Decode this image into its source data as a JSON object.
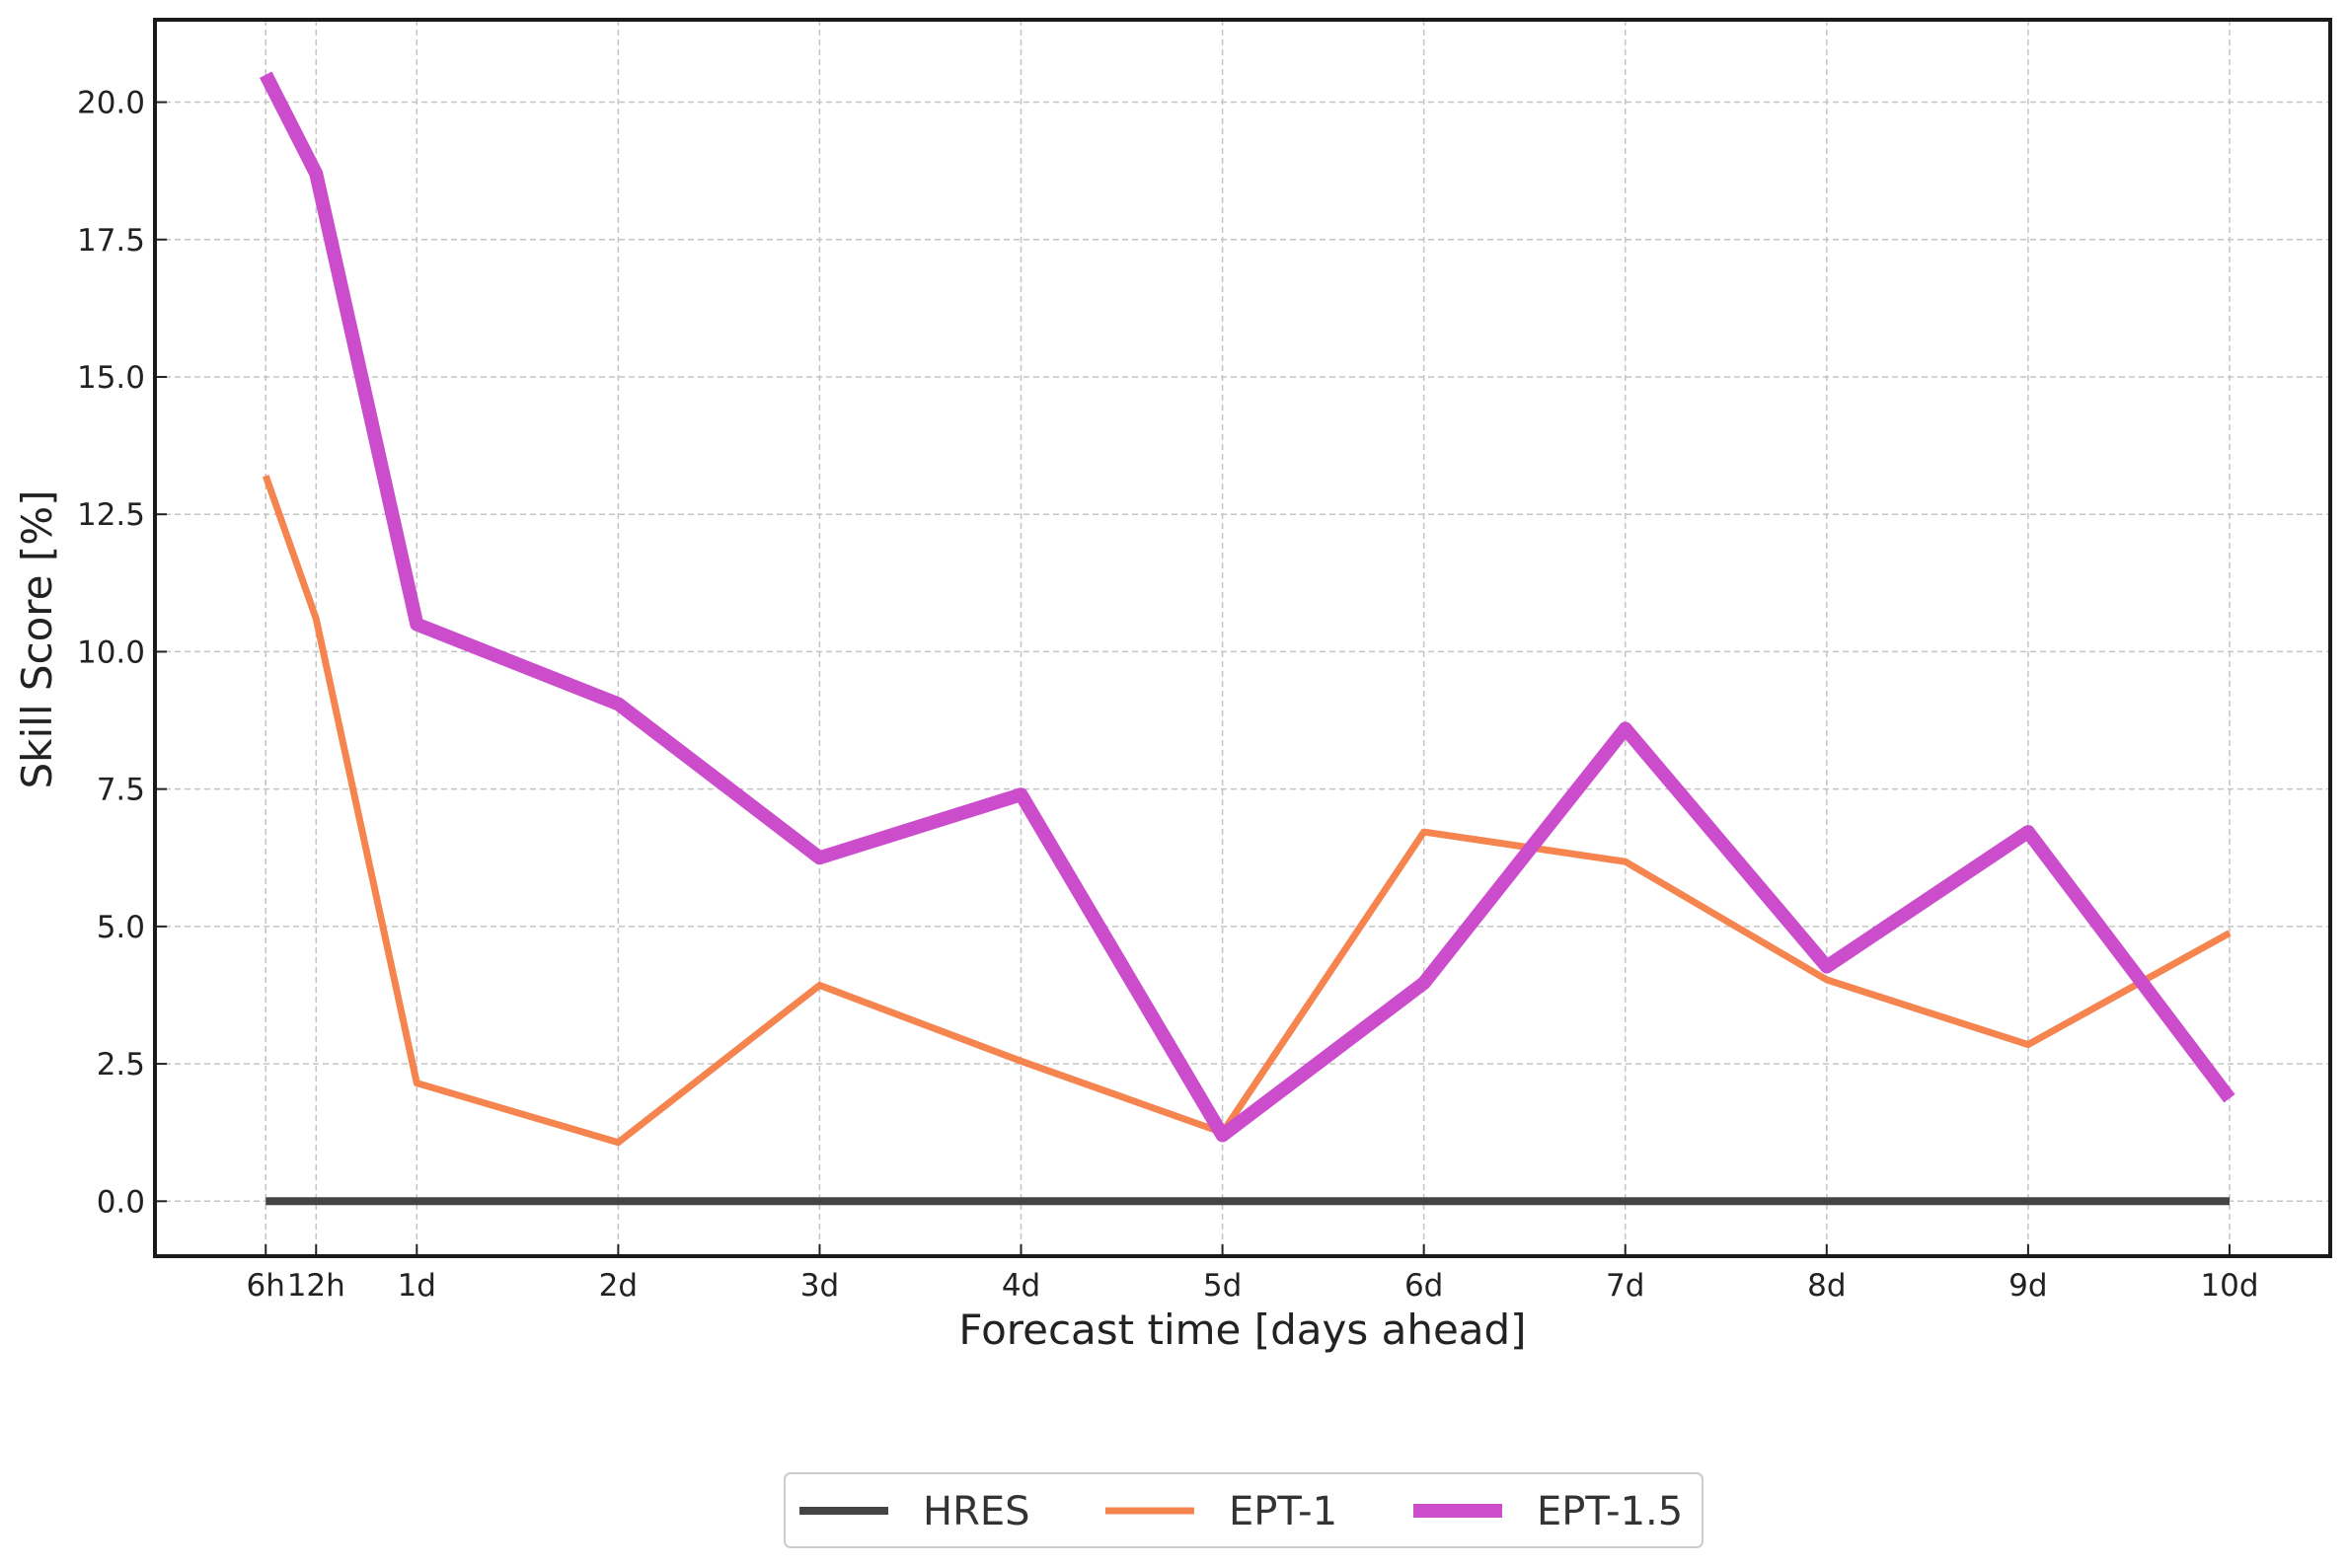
{
  "chart_data": {
    "type": "line",
    "title": "",
    "xlabel": "Forecast time [days ahead]",
    "ylabel": "Skill Score [%]",
    "x": [
      0.25,
      0.5,
      1,
      2,
      3,
      4,
      5,
      6,
      7,
      8,
      9,
      10
    ],
    "x_tick_values": [
      0.25,
      0.5,
      1,
      2,
      3,
      4,
      5,
      6,
      7,
      8,
      9,
      10
    ],
    "x_tick_labels": [
      "6h",
      "12h",
      "1d",
      "2d",
      "3d",
      "4d",
      "5d",
      "6d",
      "7d",
      "8d",
      "9d",
      "10d"
    ],
    "xlim": [
      -0.3,
      10.5
    ],
    "ylim": [
      -1.0,
      21.5
    ],
    "y_tick_values": [
      0.0,
      2.5,
      5.0,
      7.5,
      10.0,
      12.5,
      15.0,
      17.5,
      20.0
    ],
    "y_tick_labels": [
      "0.0",
      "2.5",
      "5.0",
      "7.5",
      "10.0",
      "12.5",
      "15.0",
      "17.5",
      "20.0"
    ],
    "grid": true,
    "legend_position": "bottom-center",
    "series": [
      {
        "name": "HRES",
        "color": "#444444",
        "values": [
          0.0,
          0.0,
          0.0,
          0.0,
          0.0,
          0.0,
          0.0,
          0.0,
          0.0,
          0.0,
          0.0,
          0.0
        ]
      },
      {
        "name": "EPT-1",
        "color": "#f5844f",
        "values": [
          13.2,
          10.6,
          2.15,
          1.07,
          3.93,
          2.55,
          1.25,
          6.72,
          6.18,
          4.03,
          2.85,
          4.88
        ]
      },
      {
        "name": "EPT-1.5",
        "color": "#cc4dcc",
        "values": [
          20.5,
          18.7,
          10.5,
          9.05,
          6.25,
          7.4,
          1.2,
          3.97,
          8.6,
          4.27,
          6.72,
          1.87
        ]
      }
    ]
  }
}
